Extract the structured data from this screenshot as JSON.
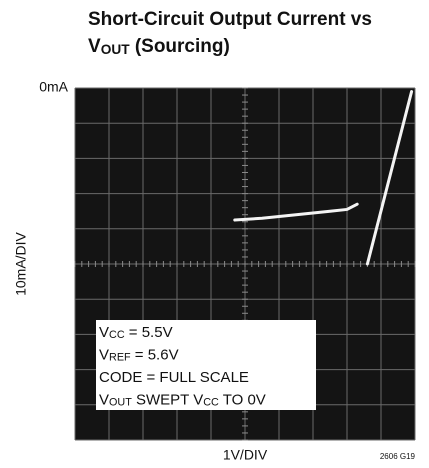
{
  "chart_data": {
    "type": "line",
    "title_lines": [
      [
        {
          "text": "Short-Circuit Output Current vs"
        }
      ],
      [
        {
          "text": "V"
        },
        {
          "sub": "OUT"
        },
        {
          "text": " (Sourcing)"
        }
      ]
    ],
    "y_label": "10mA/DIV",
    "x_label": "1V/DIV",
    "note": "2606 G19",
    "xlim": [
      0,
      10
    ],
    "ylim": [
      -100,
      0
    ],
    "yticks": [
      {
        "value": 0,
        "label": "0mA"
      }
    ],
    "xgrid": [
      0,
      1,
      2,
      3,
      4,
      5,
      6,
      7,
      8,
      9,
      10
    ],
    "ygrid": [
      -100,
      -90,
      -80,
      -70,
      -60,
      -50,
      -40,
      -30,
      -20,
      -10,
      0
    ],
    "grid": true,
    "series": [
      {
        "color": "#f4f4f4",
        "x": [
          4.7,
          5.5,
          6.5,
          7.5,
          8.0,
          8.3,
          null,
          8.6,
          9.9
        ],
        "values": [
          -37.5,
          -37,
          -36,
          -35,
          -34.5,
          -33,
          null,
          -50,
          -1
        ]
      }
    ],
    "annotation_lines": [
      [
        {
          "text": "V"
        },
        {
          "sub": "CC"
        },
        {
          "text": " = 5.5V"
        }
      ],
      [
        {
          "text": "V"
        },
        {
          "sub": "REF"
        },
        {
          "text": " = 5.6V"
        }
      ],
      [
        {
          "text": "CODE = FULL SCALE"
        }
      ],
      [
        {
          "text": "V"
        },
        {
          "sub": "OUT"
        },
        {
          "text": "  SWEPT V"
        },
        {
          "sub": "CC"
        },
        {
          "text": " TO 0V"
        }
      ]
    ]
  }
}
